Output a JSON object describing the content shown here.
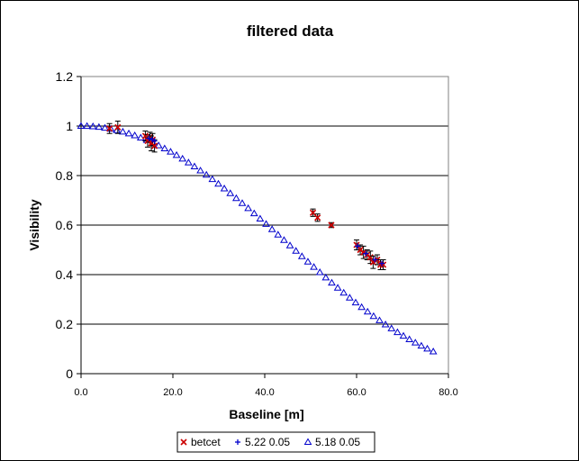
{
  "chart_data": {
    "type": "scatter",
    "title": "filtered data",
    "xlabel": "Baseline [m]",
    "ylabel": "Visibility",
    "xlim": [
      0,
      80
    ],
    "ylim": [
      0,
      1.2
    ],
    "x_ticks": [
      "0.0",
      "20.0",
      "40.0",
      "60.0",
      "80.0"
    ],
    "y_ticks": [
      "0",
      "0.2",
      "0.4",
      "0.6",
      "0.8",
      "1",
      "1.2"
    ],
    "grid": "horizontal",
    "legend_position": "bottom",
    "series": [
      {
        "name": "betcet",
        "marker": "x",
        "color": "#cc0000",
        "points": [
          {
            "x": 6.2,
            "y": 0.99,
            "err": 0.02
          },
          {
            "x": 8.0,
            "y": 0.995,
            "err": 0.025
          },
          {
            "x": 14.0,
            "y": 0.96,
            "err": 0.02
          },
          {
            "x": 14.5,
            "y": 0.94,
            "err": 0.025
          },
          {
            "x": 15.0,
            "y": 0.955,
            "err": 0.02
          },
          {
            "x": 15.3,
            "y": 0.93,
            "err": 0.03
          },
          {
            "x": 15.6,
            "y": 0.945,
            "err": 0.025
          },
          {
            "x": 16.0,
            "y": 0.92,
            "err": 0.025
          },
          {
            "x": 50.5,
            "y": 0.65,
            "err": 0.015
          },
          {
            "x": 51.5,
            "y": 0.63,
            "err": 0.015
          },
          {
            "x": 54.5,
            "y": 0.6,
            "err": 0.01
          },
          {
            "x": 60.0,
            "y": 0.52,
            "err": 0.02
          },
          {
            "x": 60.8,
            "y": 0.5,
            "err": 0.02
          },
          {
            "x": 61.5,
            "y": 0.49,
            "err": 0.025
          },
          {
            "x": 62.3,
            "y": 0.48,
            "err": 0.02
          },
          {
            "x": 63.0,
            "y": 0.47,
            "err": 0.025
          },
          {
            "x": 63.6,
            "y": 0.45,
            "err": 0.025
          },
          {
            "x": 64.5,
            "y": 0.46,
            "err": 0.02
          },
          {
            "x": 65.2,
            "y": 0.44,
            "err": 0.02
          },
          {
            "x": 65.8,
            "y": 0.44,
            "err": 0.02
          }
        ]
      },
      {
        "name": "5.22 0.05",
        "marker": "plus",
        "color": "#0000cc",
        "points": [
          {
            "x": 14.8,
            "y": 0.95
          },
          {
            "x": 15.5,
            "y": 0.945
          },
          {
            "x": 16.0,
            "y": 0.94
          },
          {
            "x": 60.2,
            "y": 0.515
          },
          {
            "x": 62.0,
            "y": 0.485
          },
          {
            "x": 64.0,
            "y": 0.46
          },
          {
            "x": 65.5,
            "y": 0.445
          }
        ]
      },
      {
        "name": "5.18 0.05",
        "marker": "triangle",
        "color": "#0000cc",
        "x": [
          0,
          1.3,
          2.6,
          3.9,
          5.2,
          6.5,
          7.8,
          9.1,
          10.4,
          11.7,
          13,
          14.3,
          15.6,
          16.9,
          18.2,
          19.5,
          20.8,
          22.1,
          23.4,
          24.7,
          26,
          27.3,
          28.6,
          29.9,
          31.2,
          32.5,
          33.8,
          35.1,
          36.4,
          37.7,
          39,
          40.3,
          41.6,
          42.9,
          44.2,
          45.5,
          46.8,
          48.1,
          49.4,
          50.7,
          52,
          53.3,
          54.6,
          55.9,
          57.2,
          58.5,
          59.8,
          61.1,
          62.4,
          63.7,
          65,
          66.3,
          67.6,
          68.9,
          70.2,
          71.5,
          72.8,
          74.1,
          75.4,
          76.7
        ],
        "y": [
          1.0,
          0.9995,
          0.9981,
          0.9957,
          0.9924,
          0.9881,
          0.9829,
          0.9768,
          0.9697,
          0.9617,
          0.9529,
          0.9432,
          0.9326,
          0.9212,
          0.909,
          0.896,
          0.8822,
          0.8676,
          0.8524,
          0.8364,
          0.8198,
          0.8026,
          0.7848,
          0.7664,
          0.7475,
          0.7282,
          0.7084,
          0.6882,
          0.6676,
          0.6467,
          0.6256,
          0.6042,
          0.5826,
          0.5609,
          0.5391,
          0.5173,
          0.4954,
          0.4736,
          0.4519,
          0.4304,
          0.409,
          0.3878,
          0.3669,
          0.3464,
          0.3262,
          0.3064,
          0.287,
          0.2682,
          0.2498,
          0.232,
          0.2148,
          0.1982,
          0.1822,
          0.1668,
          0.1522,
          0.1382,
          0.1248,
          0.1122,
          0.1003,
          0.0891
        ]
      }
    ]
  }
}
